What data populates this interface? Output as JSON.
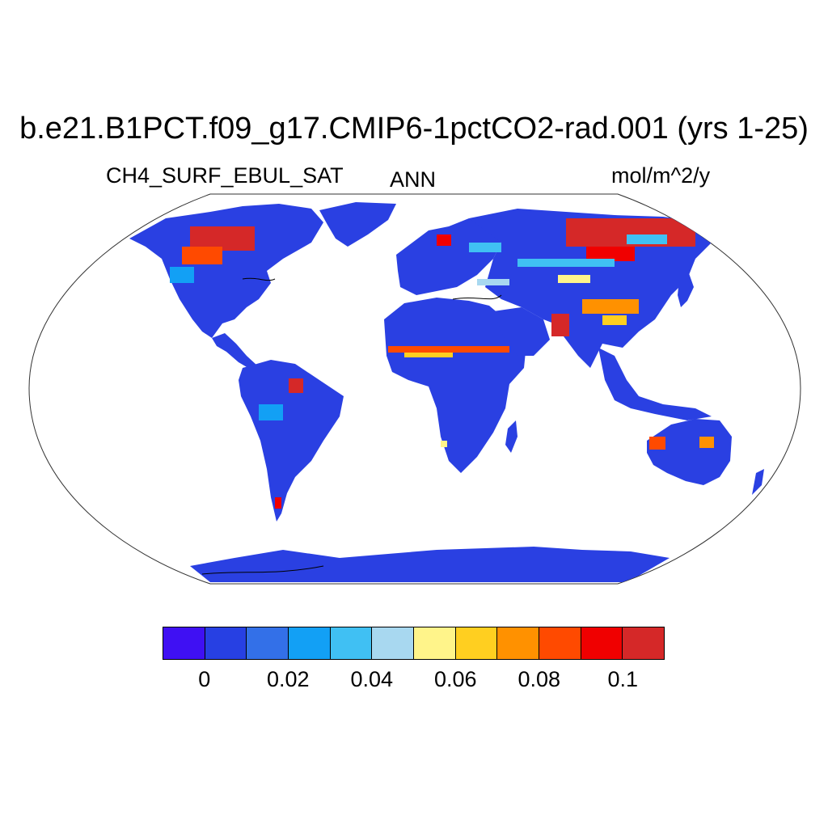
{
  "title": "b.e21.B1PCT.f09_g17.CMIP6-1pctCO2-rad.001 (yrs 1-25)",
  "left_label": "CH4_SURF_EBUL_SAT",
  "center_label": "ANN",
  "right_label": "mol/m^2/y",
  "projection": "Robinson",
  "land_base_color": "#2a40e2",
  "colorbar": {
    "colors": [
      "#3f10f3",
      "#2740e3",
      "#3370e8",
      "#12a0f5",
      "#40c0f3",
      "#a8d8f0",
      "#fff48a",
      "#ffcf20",
      "#ff9100",
      "#ff4a00",
      "#f00000",
      "#d52828"
    ],
    "tick_labels": [
      "0",
      "0.02",
      "0.04",
      "0.06",
      "0.08",
      "0.1"
    ]
  },
  "hotspots": [
    {
      "region": "Western Siberia",
      "value": "0.1+"
    },
    {
      "region": "Hudson Bay Lowlands",
      "value": "0.1+"
    },
    {
      "region": "Indus / NW India",
      "value": "0.1+"
    },
    {
      "region": "Sahel belt",
      "value": "0.06-0.1"
    },
    {
      "region": "Amazon basin",
      "value": "0.1+"
    },
    {
      "region": "Eastern China",
      "value": "0.06-0.1"
    }
  ]
}
